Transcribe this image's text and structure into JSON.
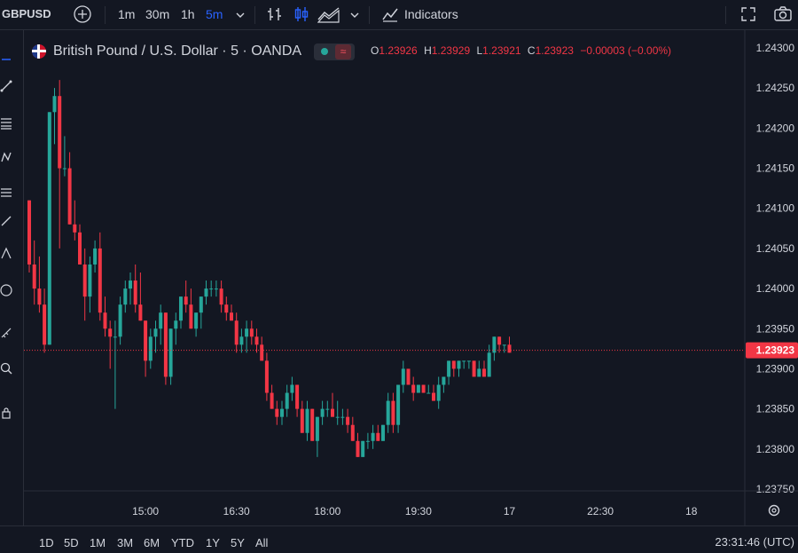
{
  "toolbar": {
    "symbol": "GBPUSD",
    "intervals": [
      "1m",
      "30m",
      "1h",
      "5m"
    ],
    "active_interval": "5m",
    "indicators_label": "Indicators"
  },
  "legend": {
    "title": "British Pound / U.S. Dollar · 5 · OANDA",
    "ohlc": [
      {
        "k": "O",
        "v": "1.23926"
      },
      {
        "k": "H",
        "v": "1.23929"
      },
      {
        "k": "L",
        "v": "1.23921"
      },
      {
        "k": "C",
        "v": "1.23923"
      }
    ],
    "change": "−0.00003 (−0.00%)"
  },
  "ranges": [
    "1D",
    "5D",
    "1M",
    "3M",
    "6M",
    "YTD",
    "1Y",
    "5Y",
    "All"
  ],
  "clock": "23:31:46 (UTC)",
  "colors": {
    "up": "#26a69a",
    "down": "#f23645",
    "background": "#131722",
    "last_price": "#f23645"
  },
  "chart_data": {
    "type": "candlestick",
    "title": "British Pound / U.S. Dollar · 5 · OANDA",
    "xlabel": "",
    "ylabel": "",
    "ylim": [
      1.2373,
      1.2431
    ],
    "y_ticks": [
      "1.24300",
      "1.24250",
      "1.24200",
      "1.24150",
      "1.24100",
      "1.24050",
      "1.24000",
      "1.23950",
      "1.23900",
      "1.23850",
      "1.23800",
      "1.23750"
    ],
    "y_tick_values": [
      1.243,
      1.2425,
      1.242,
      1.2415,
      1.241,
      1.2405,
      1.24,
      1.2395,
      1.239,
      1.2385,
      1.238,
      1.2375
    ],
    "x_ticks": [
      "15:00",
      "16:30",
      "18:00",
      "19:30",
      "17",
      "22:30",
      "18"
    ],
    "x_tick_index": [
      23,
      41,
      59,
      77,
      95,
      113,
      131
    ],
    "last_price": "1.23923",
    "last_price_value": 1.23923,
    "grid": false,
    "candles": [
      [
        1.2411,
        1.2411,
        1.2402,
        1.2403
      ],
      [
        1.2403,
        1.2406,
        1.2398,
        1.24
      ],
      [
        1.24,
        1.2404,
        1.2397,
        1.2398
      ],
      [
        1.2398,
        1.24,
        1.2392,
        1.2393
      ],
      [
        1.2393,
        1.2422,
        1.2393,
        1.2422
      ],
      [
        1.2422,
        1.2425,
        1.2418,
        1.2424
      ],
      [
        1.2424,
        1.2426,
        1.2405,
        1.2415
      ],
      [
        1.2415,
        1.2419,
        1.2414,
        1.2415
      ],
      [
        1.2415,
        1.2417,
        1.2408,
        1.2408
      ],
      [
        1.2408,
        1.2411,
        1.2406,
        1.2407
      ],
      [
        1.2407,
        1.2408,
        1.2403,
        1.2403
      ],
      [
        1.2403,
        1.2405,
        1.2396,
        1.2399
      ],
      [
        1.2399,
        1.2404,
        1.2397,
        1.2403
      ],
      [
        1.2403,
        1.2406,
        1.2402,
        1.2405
      ],
      [
        1.2405,
        1.2407,
        1.2396,
        1.2397
      ],
      [
        1.2397,
        1.2399,
        1.2394,
        1.2395
      ],
      [
        1.2395,
        1.2396,
        1.239,
        1.2394
      ],
      [
        1.2394,
        1.2396,
        1.2385,
        1.2394
      ],
      [
        1.2394,
        1.2399,
        1.2393,
        1.2398
      ],
      [
        1.2398,
        1.2401,
        1.2397,
        1.24
      ],
      [
        1.24,
        1.2402,
        1.2398,
        1.2401
      ],
      [
        1.2401,
        1.2403,
        1.2397,
        1.2398
      ],
      [
        1.2398,
        1.2402,
        1.2396,
        1.2396
      ],
      [
        1.2396,
        1.2396,
        1.2389,
        1.2391
      ],
      [
        1.2391,
        1.2395,
        1.239,
        1.2394
      ],
      [
        1.2394,
        1.2396,
        1.2392,
        1.2395
      ],
      [
        1.2395,
        1.2398,
        1.2393,
        1.2397
      ],
      [
        1.2397,
        1.2397,
        1.2388,
        1.2389
      ],
      [
        1.2389,
        1.2395,
        1.2388,
        1.2395
      ],
      [
        1.2395,
        1.2397,
        1.2393,
        1.2396
      ],
      [
        1.2396,
        1.2399,
        1.2395,
        1.2399
      ],
      [
        1.2399,
        1.2401,
        1.2397,
        1.2398
      ],
      [
        1.2398,
        1.24,
        1.2395,
        1.2395
      ],
      [
        1.2395,
        1.2397,
        1.2394,
        1.2397
      ],
      [
        1.2397,
        1.2399,
        1.2395,
        1.2399
      ],
      [
        1.2399,
        1.2401,
        1.2398,
        1.24
      ],
      [
        1.24,
        1.2401,
        1.2399,
        1.24
      ],
      [
        1.24,
        1.2401,
        1.2399,
        1.24
      ],
      [
        1.24,
        1.2401,
        1.2397,
        1.2398
      ],
      [
        1.2398,
        1.2399,
        1.2396,
        1.2397
      ],
      [
        1.2397,
        1.2398,
        1.2396,
        1.2396
      ],
      [
        1.2396,
        1.2397,
        1.2392,
        1.2393
      ],
      [
        1.2393,
        1.2395,
        1.2392,
        1.2394
      ],
      [
        1.2394,
        1.2396,
        1.2392,
        1.2395
      ],
      [
        1.2395,
        1.2396,
        1.2393,
        1.2394
      ],
      [
        1.2394,
        1.2395,
        1.2392,
        1.2393
      ],
      [
        1.2393,
        1.2394,
        1.2391,
        1.2391
      ],
      [
        1.2391,
        1.2392,
        1.2386,
        1.2387
      ],
      [
        1.2387,
        1.2388,
        1.2385,
        1.2385
      ],
      [
        1.2385,
        1.2386,
        1.2383,
        1.2384
      ],
      [
        1.2384,
        1.2386,
        1.2383,
        1.2385
      ],
      [
        1.2385,
        1.2388,
        1.2384,
        1.2387
      ],
      [
        1.2387,
        1.2389,
        1.2386,
        1.2388
      ],
      [
        1.2388,
        1.2388,
        1.2384,
        1.2385
      ],
      [
        1.2385,
        1.2386,
        1.2382,
        1.2382
      ],
      [
        1.2382,
        1.2386,
        1.2381,
        1.2385
      ],
      [
        1.2385,
        1.2385,
        1.2381,
        1.2381
      ],
      [
        1.2381,
        1.2384,
        1.2379,
        1.2384
      ],
      [
        1.2384,
        1.2386,
        1.2383,
        1.2385
      ],
      [
        1.2385,
        1.2386,
        1.2384,
        1.2385
      ],
      [
        1.2385,
        1.2387,
        1.2384,
        1.2384
      ],
      [
        1.2384,
        1.2386,
        1.2383,
        1.2384
      ],
      [
        1.2384,
        1.2385,
        1.2383,
        1.2384
      ],
      [
        1.2384,
        1.2385,
        1.2382,
        1.2383
      ],
      [
        1.2383,
        1.2384,
        1.2381,
        1.2381
      ],
      [
        1.2381,
        1.2382,
        1.2379,
        1.2379
      ],
      [
        1.2379,
        1.2381,
        1.2379,
        1.2381
      ],
      [
        1.2381,
        1.2382,
        1.238,
        1.2381
      ],
      [
        1.2381,
        1.2383,
        1.238,
        1.2382
      ],
      [
        1.2382,
        1.2383,
        1.2381,
        1.2381
      ],
      [
        1.2381,
        1.2383,
        1.2381,
        1.2383
      ],
      [
        1.2383,
        1.2387,
        1.2382,
        1.2386
      ],
      [
        1.2386,
        1.2387,
        1.2382,
        1.2383
      ],
      [
        1.2383,
        1.2388,
        1.2382,
        1.2388
      ],
      [
        1.2388,
        1.2391,
        1.2387,
        1.239
      ],
      [
        1.239,
        1.239,
        1.2388,
        1.2388
      ],
      [
        1.2388,
        1.2389,
        1.2386,
        1.2387
      ],
      [
        1.2387,
        1.2388,
        1.2387,
        1.2388
      ],
      [
        1.2388,
        1.2388,
        1.2387,
        1.2387
      ],
      [
        1.2387,
        1.2388,
        1.2387,
        1.2387
      ],
      [
        1.2387,
        1.2388,
        1.2386,
        1.2386
      ],
      [
        1.2386,
        1.2389,
        1.2385,
        1.2388
      ],
      [
        1.2388,
        1.2389,
        1.2387,
        1.2389
      ],
      [
        1.2389,
        1.2391,
        1.2388,
        1.2391
      ],
      [
        1.2391,
        1.2391,
        1.2389,
        1.239
      ],
      [
        1.239,
        1.2391,
        1.2389,
        1.2391
      ],
      [
        1.2391,
        1.2391,
        1.239,
        1.2391
      ],
      [
        1.2391,
        1.2391,
        1.239,
        1.2391
      ],
      [
        1.2391,
        1.2391,
        1.2389,
        1.2389
      ],
      [
        1.2389,
        1.2391,
        1.2389,
        1.239
      ],
      [
        1.239,
        1.2391,
        1.2389,
        1.2389
      ],
      [
        1.2389,
        1.2393,
        1.2389,
        1.2392
      ],
      [
        1.2392,
        1.2394,
        1.2391,
        1.2394
      ],
      [
        1.2394,
        1.2394,
        1.2392,
        1.2393
      ],
      [
        1.2393,
        1.2393,
        1.2392,
        1.2393
      ],
      [
        1.2393,
        1.2394,
        1.2392,
        1.2392
      ]
    ]
  }
}
